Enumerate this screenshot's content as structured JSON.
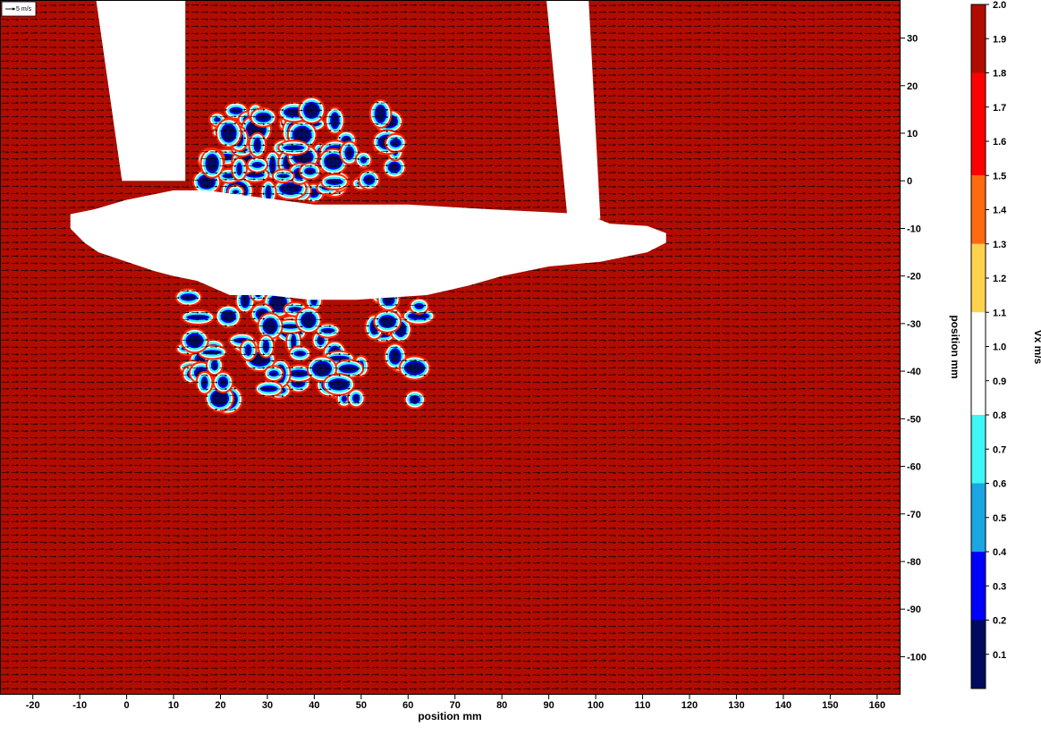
{
  "chart_data": {
    "type": "heatmap",
    "subtype": "vector-field-over-contour",
    "xlabel": "position mm",
    "ylabel": "position mm",
    "xlim": [
      -27,
      165
    ],
    "ylim": [
      -108,
      38
    ],
    "xticks": [
      -20,
      -10,
      0,
      10,
      20,
      30,
      40,
      50,
      60,
      70,
      80,
      90,
      100,
      110,
      120,
      130,
      140,
      150,
      160
    ],
    "yticks": [
      30,
      20,
      10,
      0,
      -10,
      -20,
      -30,
      -40,
      -50,
      -60,
      -70,
      -80,
      -90,
      -100
    ],
    "vector_reference": {
      "label": "5 m/s"
    },
    "colorbar": {
      "label": "Vx m/s",
      "range": [
        0,
        2.0
      ],
      "ticks": [
        "2.0",
        "1.9",
        "1.8",
        "1.7",
        "1.6",
        "1.5",
        "1.4",
        "1.3",
        "1.2",
        "1.1",
        "1.0",
        "0.9",
        "0.8",
        "0.7",
        "0.6",
        "0.5",
        "0.4",
        "0.3",
        "0.2",
        "0.1"
      ],
      "levels": [
        {
          "from": 0.0,
          "to": 0.2,
          "color": "#000a5e"
        },
        {
          "from": 0.2,
          "to": 0.4,
          "color": "#0000ff"
        },
        {
          "from": 0.4,
          "to": 0.6,
          "color": "#1aa6e0"
        },
        {
          "from": 0.6,
          "to": 0.8,
          "color": "#3ff5f5"
        },
        {
          "from": 0.8,
          "to": 1.1,
          "color": "#ffffff"
        },
        {
          "from": 1.1,
          "to": 1.3,
          "color": "#ffd24d"
        },
        {
          "from": 1.3,
          "to": 1.5,
          "color": "#ff6a10"
        },
        {
          "from": 1.5,
          "to": 1.8,
          "color": "#ff0000"
        },
        {
          "from": 1.8,
          "to": 2.0,
          "color": "#b10c00"
        }
      ]
    },
    "background_value": 1.9,
    "masked_regions": [
      {
        "name": "left-upright",
        "polygon": [
          [
            -6.5,
            38
          ],
          [
            12.5,
            38
          ],
          [
            12.5,
            0
          ],
          [
            -1,
            0
          ]
        ]
      },
      {
        "name": "right-upright",
        "polygon": [
          [
            89.5,
            38
          ],
          [
            98.5,
            38
          ],
          [
            101,
            -8
          ],
          [
            94,
            -8
          ]
        ]
      },
      {
        "name": "cross-plate",
        "polygon": [
          [
            -7,
            -6
          ],
          [
            0,
            -4
          ],
          [
            10,
            -2
          ],
          [
            17,
            -2
          ],
          [
            40,
            -5
          ],
          [
            60,
            -5
          ],
          [
            78,
            -6
          ],
          [
            98,
            -7
          ],
          [
            103,
            -9
          ],
          [
            111,
            -9.5
          ],
          [
            115,
            -11
          ],
          [
            115,
            -13
          ],
          [
            111,
            -15
          ],
          [
            101,
            -17
          ],
          [
            90,
            -18
          ],
          [
            80,
            -20
          ],
          [
            73,
            -22
          ],
          [
            64,
            -24
          ],
          [
            49,
            -25
          ],
          [
            39,
            -25
          ],
          [
            30,
            -24
          ],
          [
            22,
            -24
          ],
          [
            15,
            -21
          ],
          [
            10,
            -20
          ],
          [
            6,
            -19
          ],
          [
            0,
            -17
          ],
          [
            -6,
            -15
          ],
          [
            -9,
            -13
          ],
          [
            -12,
            -10
          ],
          [
            -12,
            -7
          ]
        ]
      }
    ],
    "wake_regions": [
      {
        "name": "upper-wake",
        "x_range": [
          16,
          59
        ],
        "y_range": [
          -3,
          15
        ]
      },
      {
        "name": "lower-wake",
        "x_range": [
          13,
          64
        ],
        "y_range": [
          -46,
          -24
        ]
      }
    ]
  }
}
